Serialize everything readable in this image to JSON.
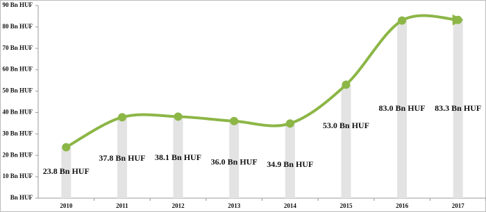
{
  "chart_data": {
    "type": "line",
    "categories": [
      "2010",
      "2011",
      "2012",
      "2013",
      "2014",
      "2015",
      "2016",
      "2017"
    ],
    "values": [
      23.8,
      37.8,
      38.1,
      36.0,
      34.9,
      53.0,
      83.0,
      83.3
    ],
    "value_labels": [
      "23.8 Bn HUF",
      "37.8 Bn HUF",
      "38.1 Bn HUF",
      "36.0 Bn HUF",
      "34.9 Bn HUF",
      "53.0 Bn HUF",
      "83.0 Bn HUF",
      "83.3 Bn HUF"
    ],
    "color": "#8cb646",
    "ylim": [
      0,
      90
    ],
    "yticks": [
      {
        "value": 0,
        "label": "Bn HUF"
      },
      {
        "value": 10,
        "label": "10 Bn HUF"
      },
      {
        "value": 20,
        "label": "20 Bn HUF"
      },
      {
        "value": 30,
        "label": "30 Bn HUF"
      },
      {
        "value": 40,
        "label": "40 Bn HUF"
      },
      {
        "value": 50,
        "label": "50 Bn HUF"
      },
      {
        "value": 60,
        "label": "60 Bn HUF"
      },
      {
        "value": 70,
        "label": "70 Bn HUF"
      },
      {
        "value": 80,
        "label": "80 Bn HUF"
      },
      {
        "value": 90,
        "label": "90 Bn HUF"
      }
    ]
  }
}
